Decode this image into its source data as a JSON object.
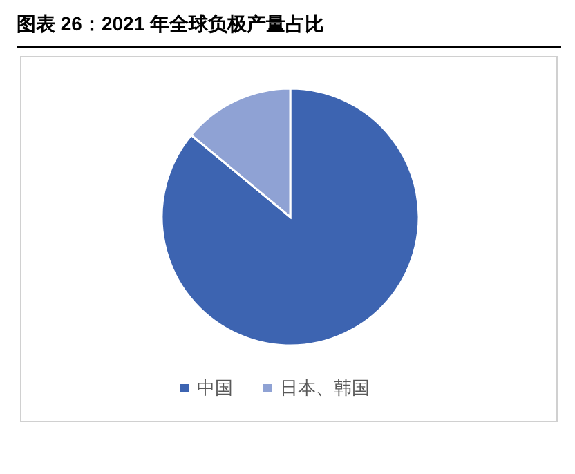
{
  "chart_data": {
    "type": "pie",
    "title": "图表 26：2021 年全球负极产量占比",
    "categories": [
      "中国",
      "日本、韩国"
    ],
    "values": [
      86,
      14
    ],
    "colors": [
      "#3d64b1",
      "#8fa2d4"
    ],
    "legend": "bottom"
  }
}
